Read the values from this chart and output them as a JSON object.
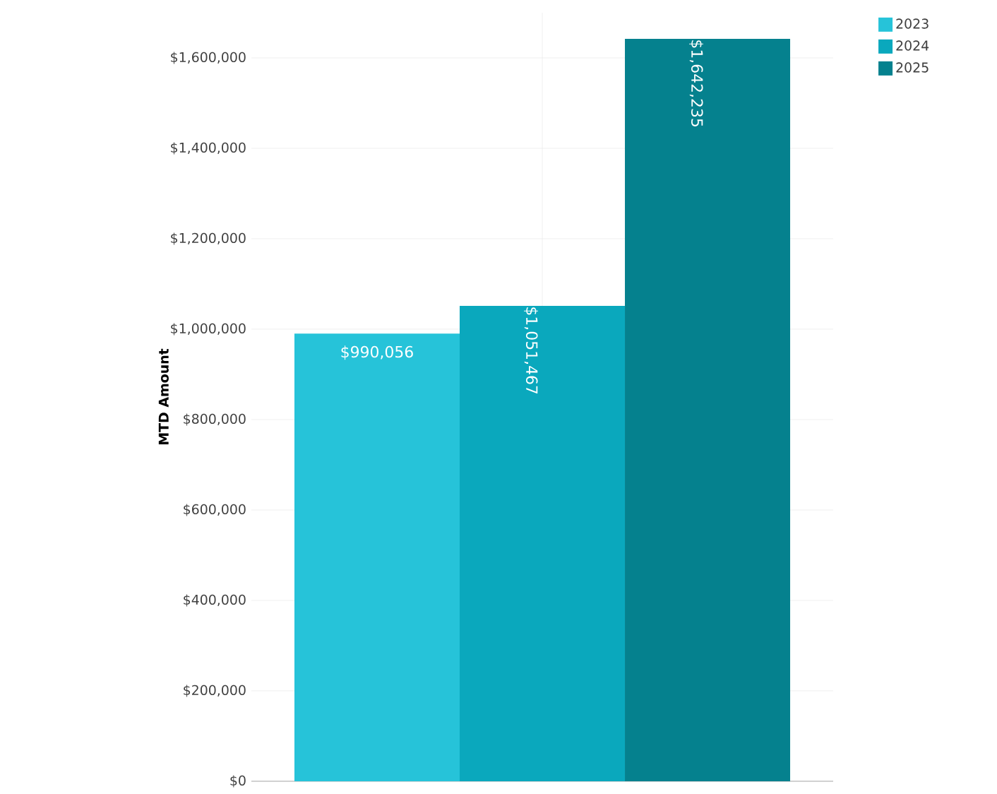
{
  "chart_data": {
    "type": "bar",
    "ylabel": "MTD Amount",
    "categories": [
      null
    ],
    "series": [
      {
        "name": "2023",
        "color": "#26c3d9",
        "values": [
          990056
        ],
        "value_labels": [
          "$990,056"
        ]
      },
      {
        "name": "2024",
        "color": "#0aa8bd",
        "values": [
          1051467
        ],
        "value_labels": [
          "$1,051,467"
        ]
      },
      {
        "name": "2025",
        "color": "#05818e",
        "values": [
          1642235
        ],
        "value_labels": [
          "$1,642,235"
        ]
      }
    ],
    "ylim": [
      0,
      1700000
    ],
    "yticks": [
      {
        "value": 0,
        "label": "$0"
      },
      {
        "value": 200000,
        "label": "$200,000"
      },
      {
        "value": 400000,
        "label": "$400,000"
      },
      {
        "value": 600000,
        "label": "$600,000"
      },
      {
        "value": 800000,
        "label": "$800,000"
      },
      {
        "value": 1000000,
        "label": "$1,000,000"
      },
      {
        "value": 1200000,
        "label": "$1,200,000"
      },
      {
        "value": 1400000,
        "label": "$1,400,000"
      },
      {
        "value": 1600000,
        "label": "$1,600,000"
      }
    ],
    "grid": true,
    "legend": "top right",
    "tick_labels": "y"
  }
}
